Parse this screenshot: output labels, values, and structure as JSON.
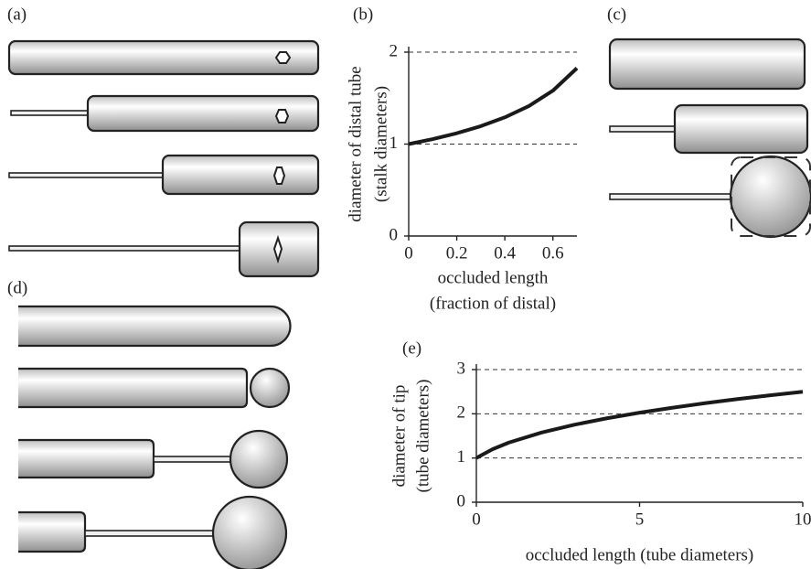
{
  "diagram_labels": [
    "(a)",
    "(c)",
    "(d)"
  ],
  "chart_data": [
    {
      "type": "line",
      "label": "(b)",
      "xlabel": [
        "occluded length",
        "(fraction of distal)"
      ],
      "ylabel": [
        "diameter of distal tube",
        "(stalk diameters)"
      ],
      "x": [
        0,
        0.1,
        0.2,
        0.3,
        0.4,
        0.5,
        0.6,
        0.7
      ],
      "values": [
        1,
        1.054,
        1.118,
        1.195,
        1.291,
        1.414,
        1.581,
        1.826
      ],
      "color": "#1a1a1a",
      "xlim": [
        0,
        0.7
      ],
      "ylim": [
        0,
        2
      ],
      "xticks": [
        0,
        0.2,
        0.4,
        0.6
      ],
      "yticks": [
        0,
        1,
        2
      ],
      "grid": true
    },
    {
      "type": "line",
      "label": "(e)",
      "xlabel": [
        "occluded length (tube diameters)"
      ],
      "ylabel": [
        "diameter of tip",
        "(tube diameters)"
      ],
      "x": [
        0,
        0.5,
        1,
        2,
        3,
        4,
        5,
        6,
        7,
        8,
        9,
        10
      ],
      "values": [
        1,
        1.2,
        1.35,
        1.577,
        1.752,
        1.898,
        2.025,
        2.137,
        2.239,
        2.333,
        2.418,
        2.499
      ],
      "color": "#1a1a1a",
      "xlim": [
        0,
        10
      ],
      "ylim": [
        0,
        3
      ],
      "xticks": [
        0,
        5,
        10
      ],
      "yticks": [
        0,
        1,
        2,
        3
      ],
      "grid": true
    }
  ]
}
